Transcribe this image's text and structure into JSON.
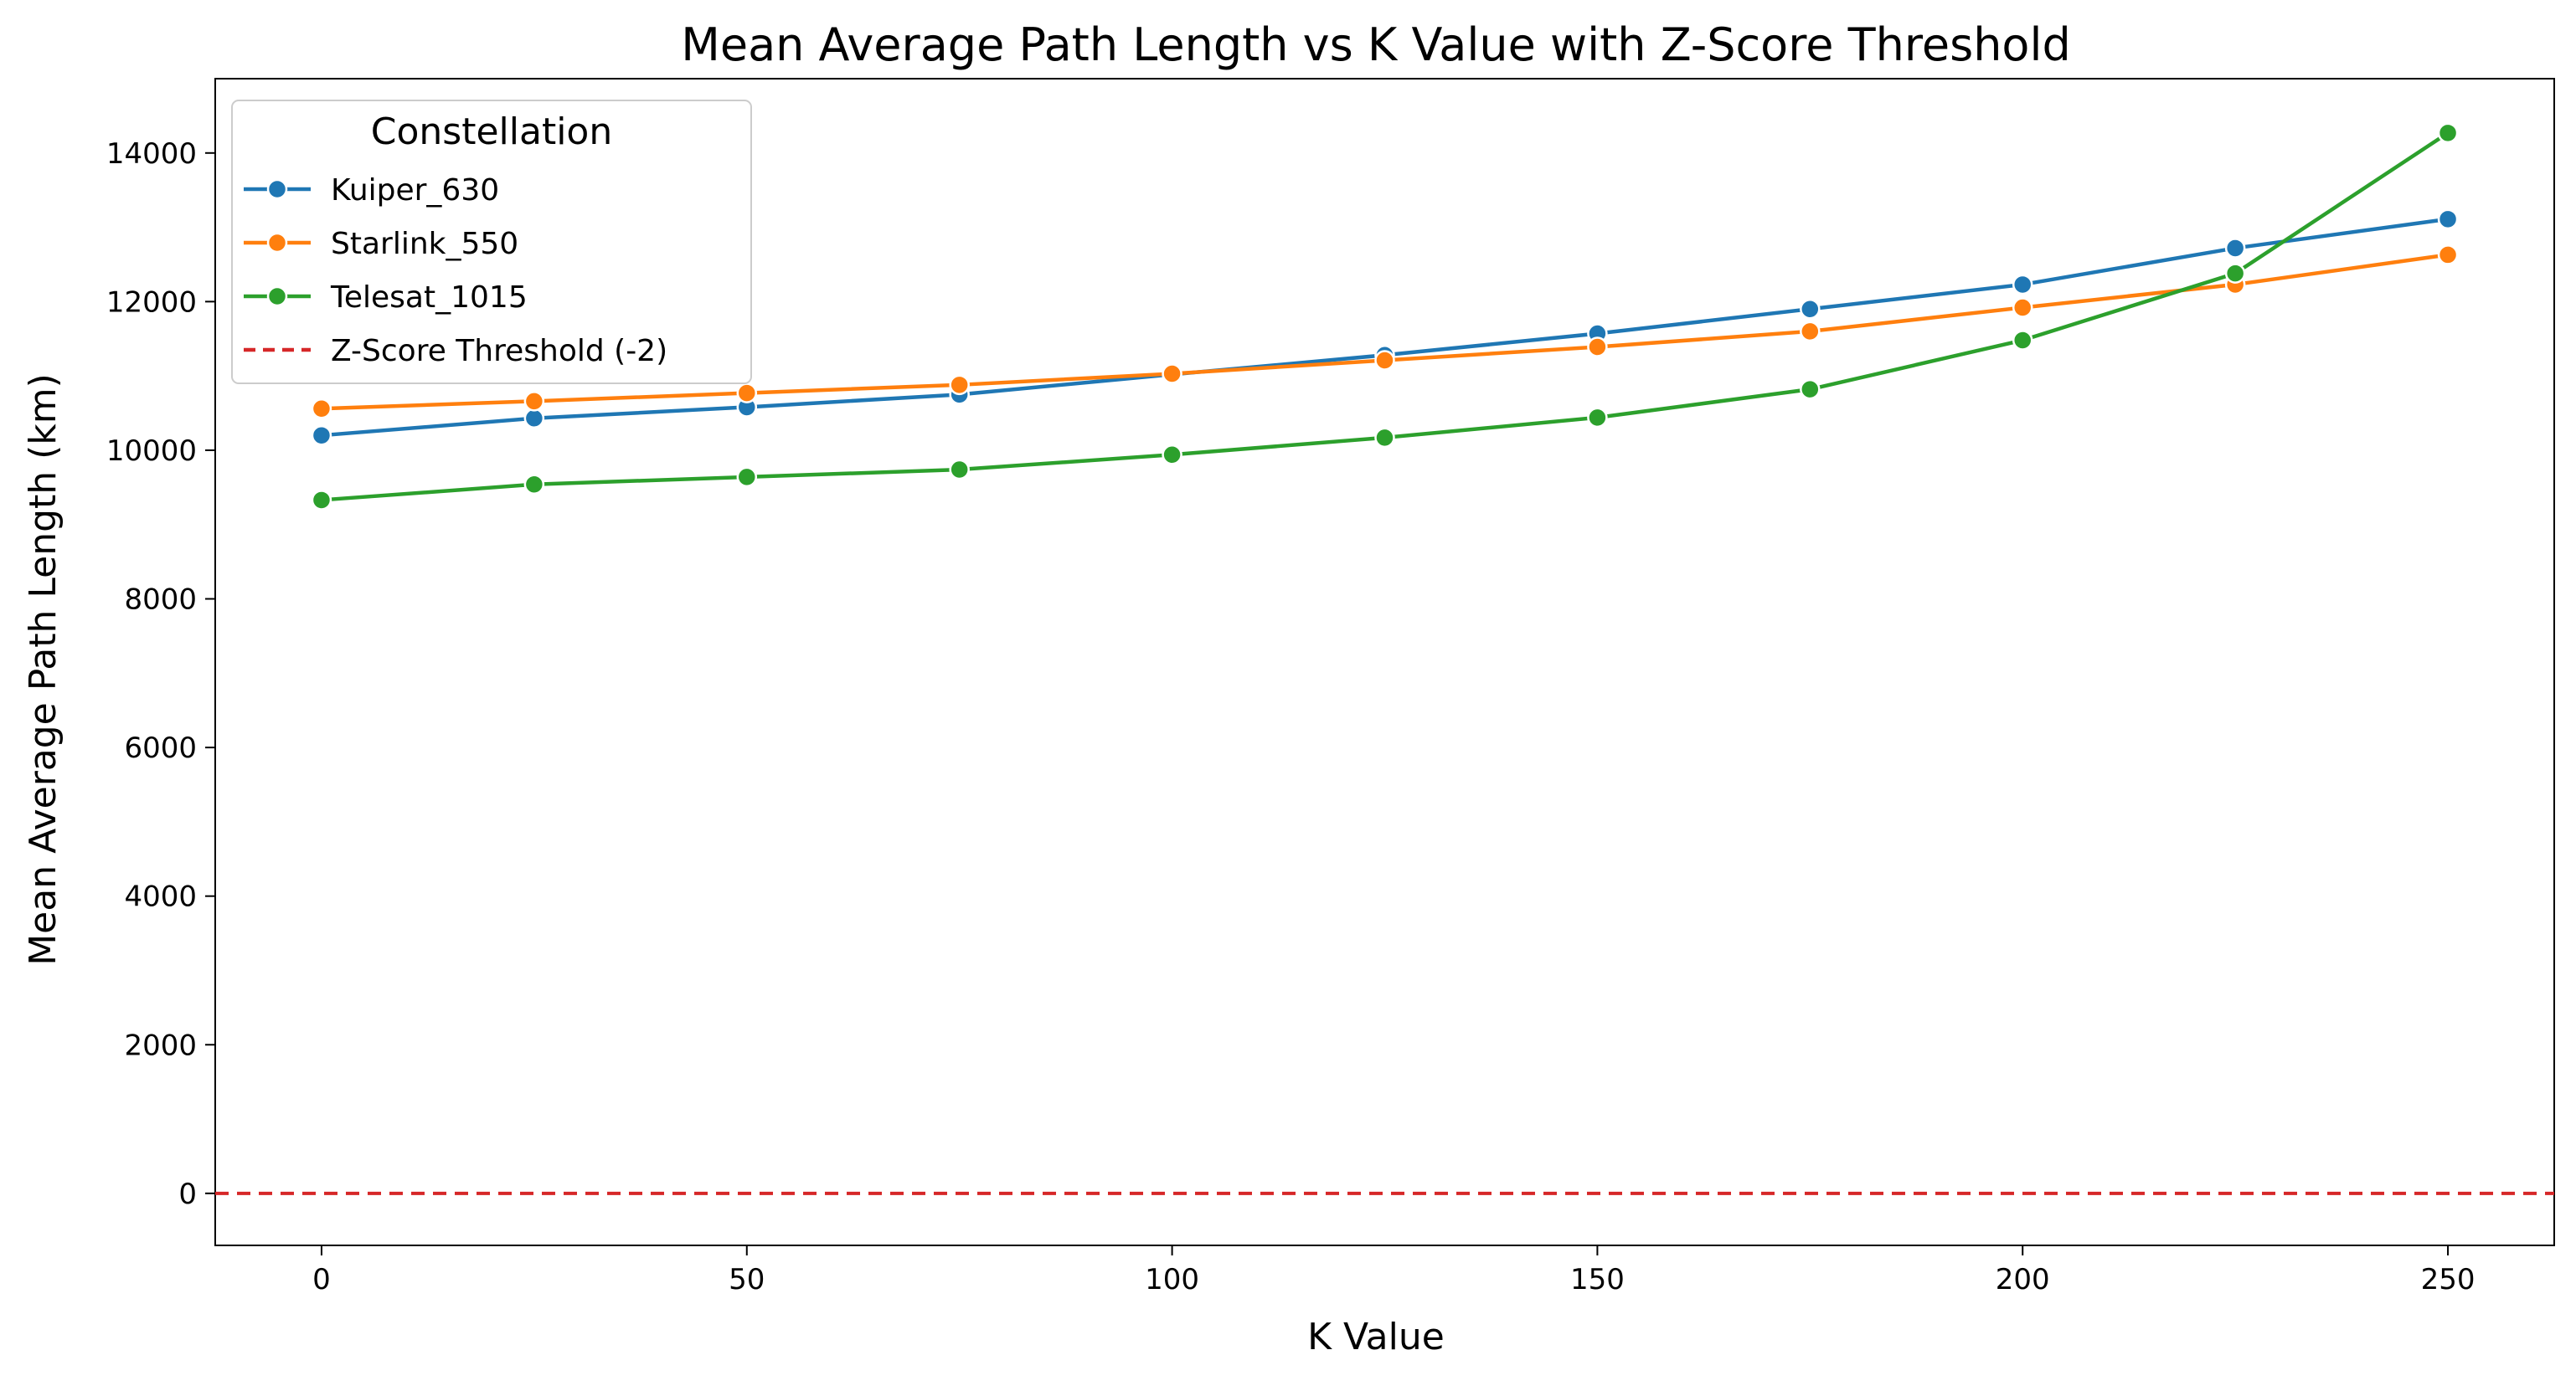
{
  "chart_data": {
    "type": "line",
    "title": "Mean Average Path Length vs K Value with Z-Score Threshold",
    "xlabel": "K Value",
    "ylabel": "Mean Average Path Length (km)",
    "xlim": [
      -12.5,
      262.5
    ],
    "ylim": [
      -700,
      15000
    ],
    "x_ticks": [
      0,
      50,
      100,
      150,
      200,
      250
    ],
    "y_ticks": [
      0,
      2000,
      4000,
      6000,
      8000,
      10000,
      12000,
      14000
    ],
    "grid": false,
    "legend": {
      "title": "Constellation",
      "placement": "top-left"
    },
    "x": [
      0,
      25,
      50,
      75,
      100,
      125,
      150,
      175,
      200,
      225,
      250
    ],
    "series": [
      {
        "name": "Kuiper_630",
        "color": "#1f77b4",
        "values": [
          10200,
          10430,
          10580,
          10750,
          11020,
          11280,
          11570,
          11900,
          12230,
          12720,
          13110
        ]
      },
      {
        "name": "Starlink_550",
        "color": "#ff7f0e",
        "values": [
          10560,
          10660,
          10770,
          10880,
          11030,
          11210,
          11390,
          11600,
          11920,
          12230,
          12630
        ]
      },
      {
        "name": "Telesat_1015",
        "color": "#2ca02c",
        "values": [
          9330,
          9540,
          9640,
          9740,
          9940,
          10170,
          10440,
          10820,
          11480,
          12380,
          14270
        ]
      }
    ],
    "threshold": {
      "name": "Z-Score Threshold (-2)",
      "color": "#d62728",
      "y": 0,
      "style": "dashed"
    }
  }
}
